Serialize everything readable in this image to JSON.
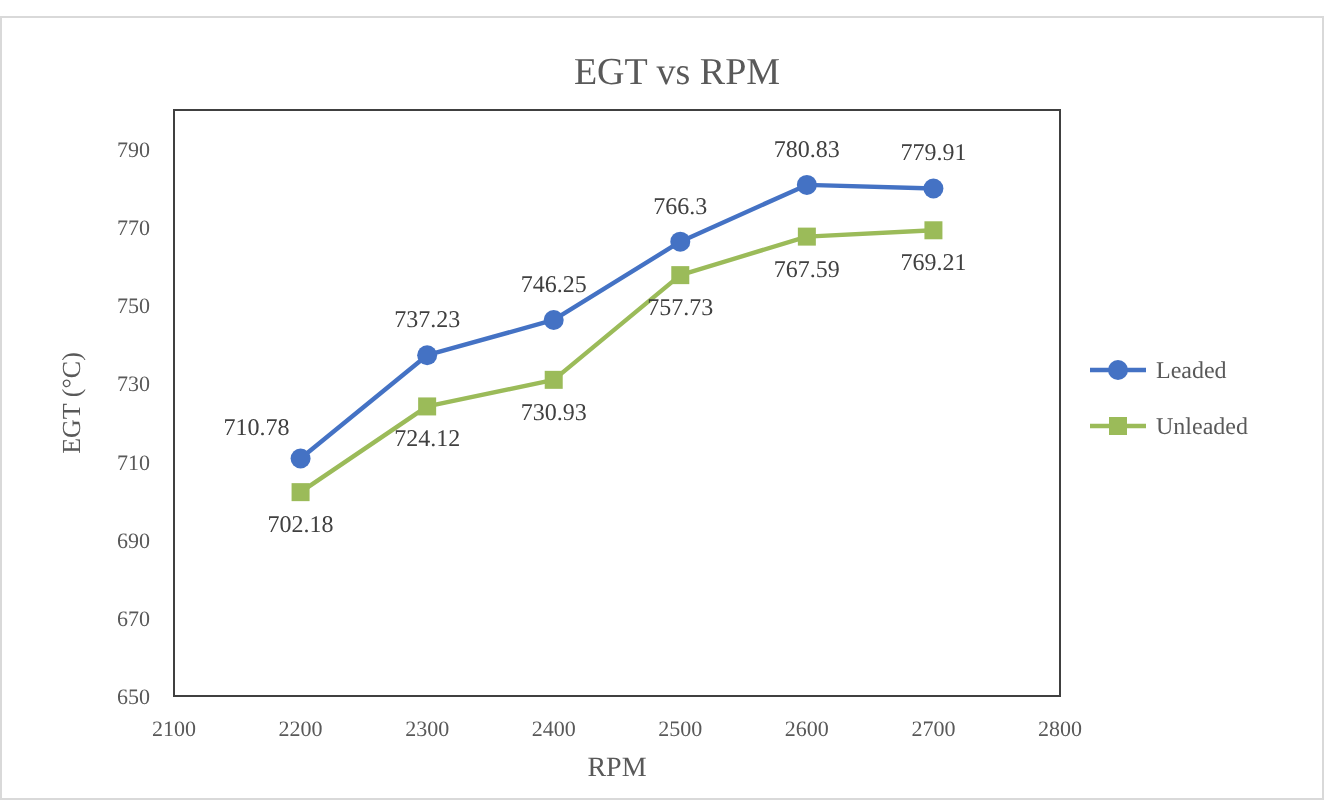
{
  "chart_data": {
    "type": "line",
    "title": "EGT vs RPM",
    "xlabel": "RPM",
    "ylabel": "EGT (°C)",
    "x": [
      2200,
      2300,
      2400,
      2500,
      2600,
      2700
    ],
    "xlim": [
      2100,
      2800
    ],
    "xticks": [
      2100,
      2200,
      2300,
      2400,
      2500,
      2600,
      2700,
      2800
    ],
    "ylim": [
      650,
      800
    ],
    "yticks": [
      650,
      670,
      690,
      710,
      730,
      750,
      770,
      790
    ],
    "series": [
      {
        "name": "Leaded",
        "color": "#4472c4",
        "marker": "circle",
        "values": [
          710.78,
          737.23,
          746.25,
          766.3,
          780.83,
          779.91
        ]
      },
      {
        "name": "Unleaded",
        "color": "#9bbb59",
        "marker": "square",
        "values": [
          702.18,
          724.12,
          730.93,
          757.73,
          767.59,
          769.21
        ]
      }
    ],
    "data_labels": true,
    "legend": "right",
    "grid": false
  }
}
